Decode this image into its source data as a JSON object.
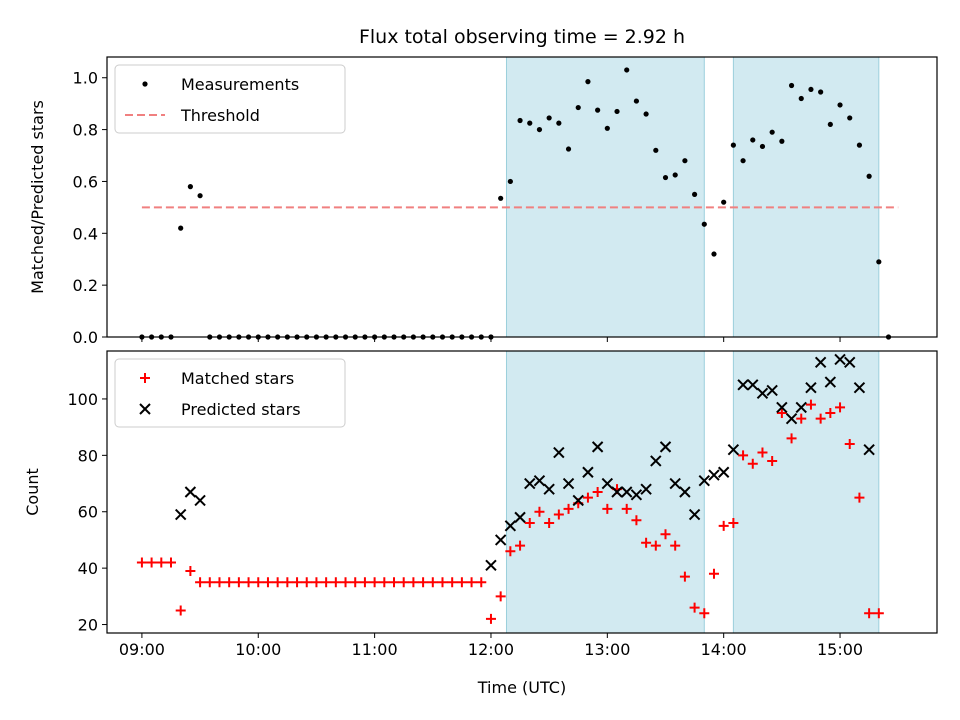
{
  "chart_data": [
    {
      "type": "scatter",
      "title": "Flux total observing time = 2.92 h",
      "xlabel": "",
      "ylabel": "Matched/Predicted stars",
      "ylim": [
        0,
        1.08
      ],
      "yticks": [
        0.0,
        0.2,
        0.4,
        0.6,
        0.8,
        1.0
      ],
      "ytick_labels": [
        "0.0",
        "0.2",
        "0.4",
        "0.6",
        "0.8",
        "1.0"
      ],
      "shaded_regions": [
        [
          "12:08",
          "13:50"
        ],
        [
          "14:05",
          "15:20"
        ]
      ],
      "shade_color": "#add8e6",
      "legend_position": "top-left",
      "threshold": {
        "name": "Threshold",
        "y": 0.5,
        "x_range": [
          "09:00",
          "15:30"
        ],
        "color": "#f08080"
      },
      "series": [
        {
          "name": "Measurements",
          "color": "#000000",
          "marker": "dot",
          "points": [
            [
              "09:00",
              0.0
            ],
            [
              "09:05",
              0.0
            ],
            [
              "09:10",
              0.0
            ],
            [
              "09:15",
              0.0
            ],
            [
              "09:20",
              0.42
            ],
            [
              "09:25",
              0.58
            ],
            [
              "09:30",
              0.545
            ],
            [
              "09:35",
              0.0
            ],
            [
              "09:40",
              0.0
            ],
            [
              "09:45",
              0.0
            ],
            [
              "09:50",
              0.0
            ],
            [
              "09:55",
              0.0
            ],
            [
              "10:00",
              0.0
            ],
            [
              "10:05",
              0.0
            ],
            [
              "10:10",
              0.0
            ],
            [
              "10:15",
              0.0
            ],
            [
              "10:20",
              0.0
            ],
            [
              "10:25",
              0.0
            ],
            [
              "10:30",
              0.0
            ],
            [
              "10:35",
              0.0
            ],
            [
              "10:40",
              0.0
            ],
            [
              "10:45",
              0.0
            ],
            [
              "10:50",
              0.0
            ],
            [
              "10:55",
              0.0
            ],
            [
              "11:00",
              0.0
            ],
            [
              "11:05",
              0.0
            ],
            [
              "11:10",
              0.0
            ],
            [
              "11:15",
              0.0
            ],
            [
              "11:20",
              0.0
            ],
            [
              "11:25",
              0.0
            ],
            [
              "11:30",
              0.0
            ],
            [
              "11:35",
              0.0
            ],
            [
              "11:40",
              0.0
            ],
            [
              "11:45",
              0.0
            ],
            [
              "11:50",
              0.0
            ],
            [
              "11:55",
              0.0
            ],
            [
              "12:00",
              0.0
            ],
            [
              "12:05",
              0.535
            ],
            [
              "12:10",
              0.6
            ],
            [
              "12:15",
              0.835
            ],
            [
              "12:20",
              0.825
            ],
            [
              "12:25",
              0.8
            ],
            [
              "12:30",
              0.845
            ],
            [
              "12:35",
              0.825
            ],
            [
              "12:40",
              0.725
            ],
            [
              "12:45",
              0.885
            ],
            [
              "12:50",
              0.985
            ],
            [
              "12:55",
              0.875
            ],
            [
              "13:00",
              0.805
            ],
            [
              "13:05",
              0.87
            ],
            [
              "13:10",
              1.03
            ],
            [
              "13:15",
              0.91
            ],
            [
              "13:20",
              0.86
            ],
            [
              "13:25",
              0.72
            ],
            [
              "13:30",
              0.615
            ],
            [
              "13:35",
              0.625
            ],
            [
              "13:40",
              0.68
            ],
            [
              "13:45",
              0.55
            ],
            [
              "13:50",
              0.435
            ],
            [
              "13:55",
              0.32
            ],
            [
              "14:00",
              0.52
            ],
            [
              "14:05",
              0.74
            ],
            [
              "14:10",
              0.68
            ],
            [
              "14:15",
              0.76
            ],
            [
              "14:20",
              0.735
            ],
            [
              "14:25",
              0.79
            ],
            [
              "14:30",
              0.755
            ],
            [
              "14:35",
              0.97
            ],
            [
              "14:40",
              0.92
            ],
            [
              "14:45",
              0.955
            ],
            [
              "14:50",
              0.945
            ],
            [
              "14:55",
              0.82
            ],
            [
              "15:00",
              0.895
            ],
            [
              "15:05",
              0.845
            ],
            [
              "15:10",
              0.74
            ],
            [
              "15:15",
              0.62
            ],
            [
              "15:20",
              0.29
            ],
            [
              "15:25",
              0.0
            ]
          ]
        }
      ]
    },
    {
      "type": "scatter",
      "title": "",
      "xlabel": "Time (UTC)",
      "ylabel": "Count",
      "ylim": [
        17,
        117
      ],
      "yticks": [
        20,
        40,
        60,
        80,
        100
      ],
      "ytick_labels": [
        "20",
        "40",
        "60",
        "80",
        "100"
      ],
      "xlim": [
        "08:42",
        "15:50"
      ],
      "xticks": [
        "09:00",
        "10:00",
        "11:00",
        "12:00",
        "13:00",
        "14:00",
        "15:00"
      ],
      "shaded_regions": [
        [
          "12:08",
          "13:50"
        ],
        [
          "14:05",
          "15:20"
        ]
      ],
      "shade_color": "#add8e6",
      "legend_position": "top-left",
      "series": [
        {
          "name": "Matched stars",
          "color": "#ff0000",
          "marker": "plus",
          "points": [
            [
              "09:00",
              42
            ],
            [
              "09:05",
              42
            ],
            [
              "09:10",
              42
            ],
            [
              "09:15",
              42
            ],
            [
              "09:20",
              25
            ],
            [
              "09:25",
              39
            ],
            [
              "09:30",
              35
            ],
            [
              "09:35",
              35
            ],
            [
              "09:40",
              35
            ],
            [
              "09:45",
              35
            ],
            [
              "09:50",
              35
            ],
            [
              "09:55",
              35
            ],
            [
              "10:00",
              35
            ],
            [
              "10:05",
              35
            ],
            [
              "10:10",
              35
            ],
            [
              "10:15",
              35
            ],
            [
              "10:20",
              35
            ],
            [
              "10:25",
              35
            ],
            [
              "10:30",
              35
            ],
            [
              "10:35",
              35
            ],
            [
              "10:40",
              35
            ],
            [
              "10:45",
              35
            ],
            [
              "10:50",
              35
            ],
            [
              "10:55",
              35
            ],
            [
              "11:00",
              35
            ],
            [
              "11:05",
              35
            ],
            [
              "11:10",
              35
            ],
            [
              "11:15",
              35
            ],
            [
              "11:20",
              35
            ],
            [
              "11:25",
              35
            ],
            [
              "11:30",
              35
            ],
            [
              "11:35",
              35
            ],
            [
              "11:40",
              35
            ],
            [
              "11:45",
              35
            ],
            [
              "11:50",
              35
            ],
            [
              "11:55",
              35
            ],
            [
              "12:00",
              22
            ],
            [
              "12:05",
              30
            ],
            [
              "12:10",
              46
            ],
            [
              "12:15",
              48
            ],
            [
              "12:20",
              56
            ],
            [
              "12:25",
              60
            ],
            [
              "12:30",
              56
            ],
            [
              "12:35",
              59
            ],
            [
              "12:40",
              61
            ],
            [
              "12:45",
              63
            ],
            [
              "12:50",
              65
            ],
            [
              "12:55",
              67
            ],
            [
              "13:00",
              61
            ],
            [
              "13:05",
              68
            ],
            [
              "13:10",
              61
            ],
            [
              "13:15",
              57
            ],
            [
              "13:20",
              49
            ],
            [
              "13:25",
              48
            ],
            [
              "13:30",
              52
            ],
            [
              "13:35",
              48
            ],
            [
              "13:40",
              37
            ],
            [
              "13:45",
              26
            ],
            [
              "13:50",
              24
            ],
            [
              "13:55",
              38
            ],
            [
              "14:00",
              55
            ],
            [
              "14:05",
              56
            ],
            [
              "14:10",
              80
            ],
            [
              "14:15",
              77
            ],
            [
              "14:20",
              81
            ],
            [
              "14:25",
              78
            ],
            [
              "14:30",
              95
            ],
            [
              "14:35",
              86
            ],
            [
              "14:40",
              93
            ],
            [
              "14:45",
              98
            ],
            [
              "14:50",
              93
            ],
            [
              "14:55",
              95
            ],
            [
              "15:00",
              97
            ],
            [
              "15:05",
              84
            ],
            [
              "15:10",
              65
            ],
            [
              "15:15",
              24
            ],
            [
              "15:20",
              24
            ]
          ]
        },
        {
          "name": "Predicted stars",
          "color": "#000000",
          "marker": "x",
          "points": [
            [
              "09:20",
              59
            ],
            [
              "09:25",
              67
            ],
            [
              "09:30",
              64
            ],
            [
              "12:00",
              41
            ],
            [
              "12:05",
              50
            ],
            [
              "12:10",
              55
            ],
            [
              "12:15",
              58
            ],
            [
              "12:20",
              70
            ],
            [
              "12:25",
              71
            ],
            [
              "12:30",
              68
            ],
            [
              "12:35",
              81
            ],
            [
              "12:40",
              70
            ],
            [
              "12:45",
              64
            ],
            [
              "12:50",
              74
            ],
            [
              "12:55",
              83
            ],
            [
              "13:00",
              70
            ],
            [
              "13:05",
              67
            ],
            [
              "13:10",
              67
            ],
            [
              "13:15",
              66
            ],
            [
              "13:20",
              68
            ],
            [
              "13:25",
              78
            ],
            [
              "13:30",
              83
            ],
            [
              "13:35",
              70
            ],
            [
              "13:40",
              67
            ],
            [
              "13:45",
              59
            ],
            [
              "13:50",
              71
            ],
            [
              "13:55",
              73
            ],
            [
              "14:00",
              74
            ],
            [
              "14:05",
              82
            ],
            [
              "14:10",
              105
            ],
            [
              "14:15",
              105
            ],
            [
              "14:20",
              102
            ],
            [
              "14:25",
              103
            ],
            [
              "14:30",
              97
            ],
            [
              "14:35",
              93
            ],
            [
              "14:40",
              97
            ],
            [
              "14:45",
              104
            ],
            [
              "14:50",
              113
            ],
            [
              "14:55",
              106
            ],
            [
              "15:00",
              114
            ],
            [
              "15:05",
              113
            ],
            [
              "15:10",
              104
            ],
            [
              "15:15",
              82
            ]
          ]
        }
      ]
    }
  ]
}
